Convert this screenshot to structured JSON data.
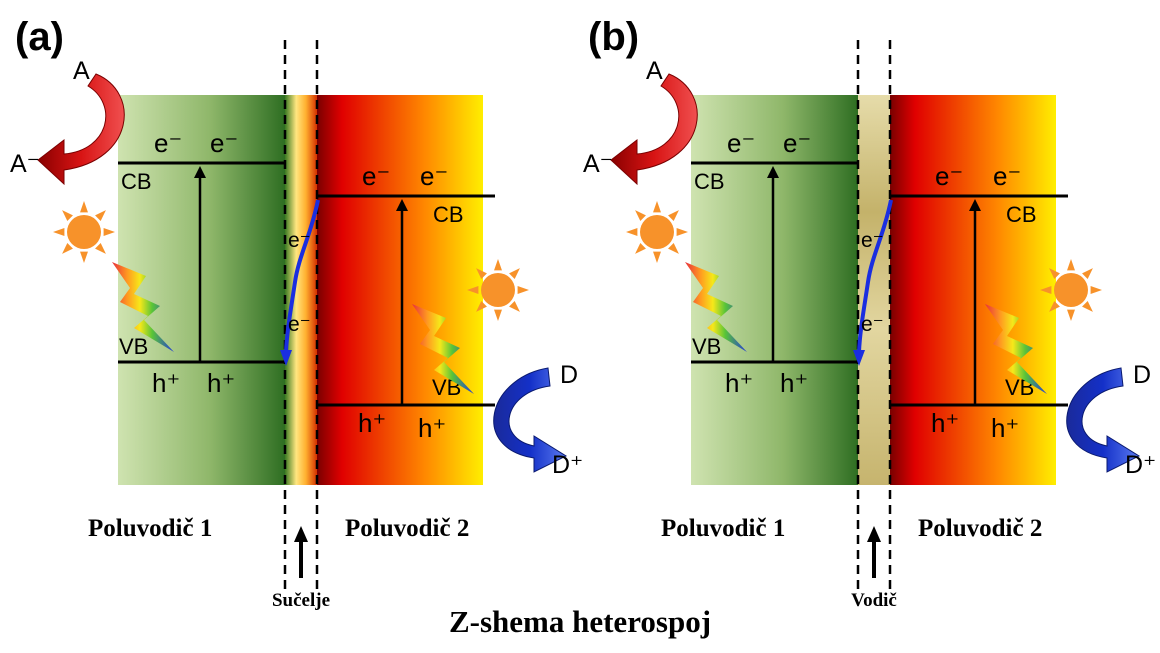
{
  "figure_title": "Z-shema heterospoj",
  "colors": {
    "sc1_light": "#cfe3b0",
    "sc1_dark": "#2e6e22",
    "sc2_red": "#e00000",
    "sc2_orange": "#ff8800",
    "sc2_yellow": "#ffee00",
    "conductor": "#c8b66c",
    "reduction_arrow": "#d81414",
    "oxidation_arrow": "#1430c8",
    "transfer_path": "#1a2ee0",
    "sun": "#f7922a"
  },
  "panels": [
    {
      "id": "a",
      "label": "(a)",
      "semiconductor1": {
        "name": "Poluvodič 1",
        "cb_label": "CB",
        "vb_label": "VB",
        "cb_electrons": [
          "e⁻",
          "e⁻"
        ],
        "vb_holes": [
          "h⁺",
          "h⁺"
        ]
      },
      "semiconductor2": {
        "name": "Poluvodič 2",
        "cb_label": "CB",
        "vb_label": "VB",
        "cb_electrons": [
          "e⁻",
          "e⁻"
        ],
        "vb_holes": [
          "h⁺",
          "h⁺"
        ]
      },
      "junction": {
        "type": "interface",
        "label": "Sučelje",
        "transfer_labels": [
          "e⁻",
          "e⁻"
        ]
      },
      "reduction": {
        "reactant": "A",
        "product": "A⁻"
      },
      "oxidation": {
        "reactant": "D",
        "product": "D⁺"
      }
    },
    {
      "id": "b",
      "label": "(b)",
      "semiconductor1": {
        "name": "Poluvodič 1",
        "cb_label": "CB",
        "vb_label": "VB",
        "cb_electrons": [
          "e⁻",
          "e⁻"
        ],
        "vb_holes": [
          "h⁺",
          "h⁺"
        ]
      },
      "semiconductor2": {
        "name": "Poluvodič 2",
        "cb_label": "CB",
        "vb_label": "VB",
        "cb_electrons": [
          "e⁻",
          "e⁻"
        ],
        "vb_holes": [
          "h⁺",
          "h⁺"
        ]
      },
      "junction": {
        "type": "conductor",
        "label": "Vodič",
        "transfer_labels": [
          "e⁻",
          "e⁻"
        ]
      },
      "reduction": {
        "reactant": "A",
        "product": "A⁻"
      },
      "oxidation": {
        "reactant": "D",
        "product": "D⁺"
      }
    }
  ]
}
